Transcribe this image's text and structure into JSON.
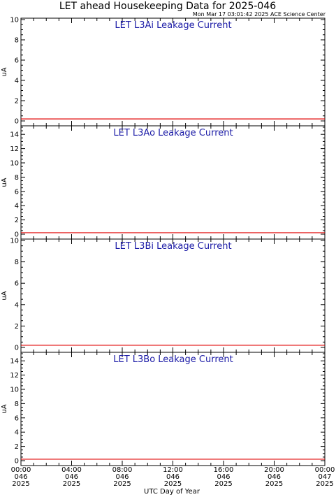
{
  "header": {
    "title": "LET ahead Housekeeping Data for 2025-046",
    "timestamp": "Mon Mar 17 03:01:42 2025 ACE Science Center"
  },
  "colors": {
    "data_line": "#e00000",
    "panel_title": "#1a1aa6",
    "axis": "#000000"
  },
  "chart_data": [
    {
      "type": "line",
      "title": "LET L3Ai Leakage Current",
      "ylabel": "uA",
      "ylim": [
        0,
        10
      ],
      "yticks": [
        0,
        2,
        4,
        6,
        8,
        10
      ],
      "x": [
        "2025-046 00:00",
        "2025-047 00:00"
      ],
      "series": [
        {
          "values": [
            0.2,
            0.2
          ]
        }
      ]
    },
    {
      "type": "line",
      "title": "LET L3Ao Leakage Current",
      "ylabel": "uA",
      "ylim": [
        0,
        15
      ],
      "yticks": [
        0,
        2,
        4,
        6,
        8,
        10,
        12,
        14
      ],
      "x": [
        "2025-046 00:00",
        "2025-047 00:00"
      ],
      "series": [
        {
          "values": [
            0.2,
            0.2
          ]
        }
      ]
    },
    {
      "type": "line",
      "title": "LET L3Bi Leakage Current",
      "ylabel": "uA",
      "ylim": [
        0,
        10
      ],
      "yticks": [
        0,
        2,
        4,
        6,
        8,
        10
      ],
      "x": [
        "2025-046 00:00",
        "2025-047 00:00"
      ],
      "series": [
        {
          "values": [
            0.2,
            0.2
          ]
        }
      ]
    },
    {
      "type": "line",
      "title": "LET L3Bo Leakage Current",
      "ylabel": "uA",
      "ylim": [
        0,
        15
      ],
      "yticks": [
        0,
        2,
        4,
        6,
        8,
        10,
        12,
        14
      ],
      "x": [
        "2025-046 00:00",
        "2025-047 00:00"
      ],
      "series": [
        {
          "values": [
            0.2,
            0.2
          ]
        }
      ]
    }
  ],
  "x_axis": {
    "label": "UTC Day of Year",
    "ticks": [
      {
        "time": "00:00",
        "doy": "046",
        "year": "2025"
      },
      {
        "time": "04:00",
        "doy": "046",
        "year": "2025"
      },
      {
        "time": "08:00",
        "doy": "046",
        "year": "2025"
      },
      {
        "time": "12:00",
        "doy": "046",
        "year": "2025"
      },
      {
        "time": "16:00",
        "doy": "046",
        "year": "2025"
      },
      {
        "time": "20:00",
        "doy": "046",
        "year": "2025"
      },
      {
        "time": "00:00",
        "doy": "047",
        "year": "2025"
      }
    ]
  }
}
